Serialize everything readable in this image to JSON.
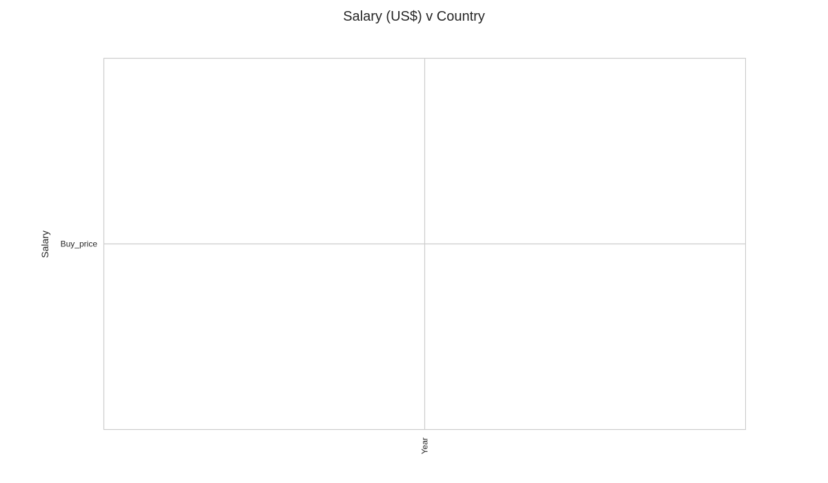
{
  "chart_data": {
    "type": "scatter",
    "title": "Salary (US$) v Country",
    "xlabel": "",
    "ylabel": "Salary",
    "x_categories": [
      "Year"
    ],
    "y_categories": [
      "Buy_price"
    ],
    "x_tick_rotation": 90,
    "series": [],
    "grid": true,
    "legend": "none"
  }
}
